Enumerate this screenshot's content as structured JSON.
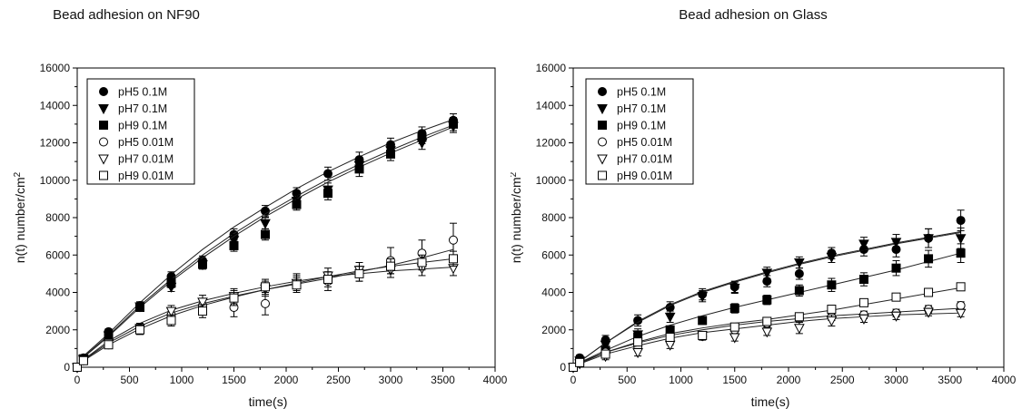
{
  "chart_data": [
    {
      "type": "scatter",
      "title": "Bead adhesion on NF90",
      "xlabel": "time(s)",
      "ylabel": "n(t) number/cm",
      "ylabel_sup": "2",
      "xlim": [
        0,
        4000
      ],
      "ylim": [
        0,
        16000
      ],
      "xticks": [
        0,
        500,
        1000,
        1500,
        2000,
        2500,
        3000,
        3500,
        4000
      ],
      "yticks": [
        0,
        2000,
        4000,
        6000,
        8000,
        10000,
        12000,
        14000,
        16000
      ],
      "legend_position": "top-left",
      "grid": false,
      "x": [
        0,
        60,
        300,
        600,
        900,
        1200,
        1500,
        1800,
        2100,
        2400,
        2700,
        3000,
        3300,
        3600
      ],
      "series": [
        {
          "name": "pH5 0.1M",
          "marker": "circle-filled",
          "values": [
            0,
            500,
            1900,
            3300,
            4850,
            5700,
            7100,
            8350,
            9300,
            10350,
            11100,
            11900,
            12500,
            13200
          ],
          "errors": [
            0,
            100,
            150,
            200,
            250,
            250,
            300,
            300,
            300,
            350,
            400,
            350,
            350,
            350
          ],
          "fit": [
            0,
            600,
            1800,
            3450,
            4950,
            6300,
            7500,
            8550,
            9550,
            10450,
            11250,
            12000,
            12650,
            13250
          ]
        },
        {
          "name": "pH7 0.1M",
          "marker": "triangle-down-filled",
          "values": [
            0,
            450,
            1700,
            3250,
            4300,
            5500,
            6800,
            7700,
            8900,
            9500,
            10800,
            11600,
            12000,
            12900
          ],
          "errors": [
            0,
            100,
            150,
            200,
            250,
            250,
            300,
            300,
            300,
            350,
            400,
            350,
            350,
            350
          ],
          "fit": [
            0,
            550,
            1700,
            3300,
            4700,
            6000,
            7150,
            8200,
            9150,
            10050,
            10850,
            11600,
            12300,
            12950
          ]
        },
        {
          "name": "pH9 0.1M",
          "marker": "square-filled",
          "values": [
            0,
            450,
            1600,
            3200,
            4500,
            5500,
            6500,
            7100,
            8700,
            9300,
            10600,
            11400,
            12300,
            13000
          ],
          "errors": [
            0,
            100,
            150,
            200,
            250,
            250,
            300,
            300,
            300,
            350,
            400,
            350,
            350,
            350
          ],
          "fit": [
            0,
            520,
            1650,
            3200,
            4600,
            5850,
            7000,
            8050,
            9000,
            9900,
            10700,
            11450,
            12150,
            12850
          ]
        },
        {
          "name": "pH5 0.01M",
          "marker": "circle-open",
          "values": [
            0,
            400,
            1200,
            2100,
            2800,
            3300,
            3200,
            3400,
            4500,
            4600,
            5100,
            5700,
            6100,
            6800
          ],
          "errors": [
            0,
            100,
            150,
            250,
            300,
            350,
            500,
            600,
            500,
            500,
            500,
            700,
            700,
            900
          ],
          "fit": [
            0,
            380,
            1300,
            2200,
            2900,
            3400,
            3800,
            4150,
            4450,
            4750,
            5100,
            5450,
            5850,
            6300
          ]
        },
        {
          "name": "pH7 0.01M",
          "marker": "triangle-down-open",
          "values": [
            0,
            400,
            1300,
            2100,
            3000,
            3500,
            3800,
            4200,
            4500,
            4900,
            5200,
            5200,
            5300,
            5300
          ],
          "errors": [
            0,
            100,
            150,
            250,
            300,
            350,
            400,
            400,
            400,
            400,
            400,
            400,
            400,
            400
          ],
          "fit": [
            0,
            400,
            1400,
            2350,
            3050,
            3550,
            3950,
            4300,
            4600,
            4850,
            5000,
            5150,
            5250,
            5350
          ]
        },
        {
          "name": "pH9 0.01M",
          "marker": "square-open",
          "values": [
            0,
            350,
            1200,
            2000,
            2500,
            3000,
            3700,
            4300,
            4400,
            4700,
            5000,
            5400,
            5600,
            5800
          ],
          "errors": [
            0,
            100,
            150,
            250,
            300,
            350,
            400,
            400,
            400,
            400,
            400,
            400,
            400,
            400
          ],
          "fit": [
            0,
            350,
            1200,
            2050,
            2750,
            3300,
            3750,
            4150,
            4500,
            4850,
            5150,
            5400,
            5600,
            5800
          ]
        }
      ]
    },
    {
      "type": "scatter",
      "title": "Bead adhesion on Glass",
      "xlabel": "time(s)",
      "ylabel": "n(t) number/cm",
      "ylabel_sup": "2",
      "xlim": [
        0,
        4000
      ],
      "ylim": [
        0,
        16000
      ],
      "xticks": [
        0,
        500,
        1000,
        1500,
        2000,
        2500,
        3000,
        3500,
        4000
      ],
      "yticks": [
        0,
        2000,
        4000,
        6000,
        8000,
        10000,
        12000,
        14000,
        16000
      ],
      "legend_position": "top-left",
      "grid": false,
      "x": [
        0,
        60,
        300,
        600,
        900,
        1200,
        1500,
        1800,
        2100,
        2400,
        2700,
        3000,
        3300,
        3600
      ],
      "series": [
        {
          "name": "pH5 0.1M",
          "marker": "circle-filled",
          "values": [
            0,
            500,
            1450,
            2500,
            3200,
            3900,
            4300,
            4600,
            5000,
            6100,
            6300,
            6300,
            6900,
            7850
          ],
          "errors": [
            0,
            150,
            250,
            300,
            300,
            300,
            300,
            300,
            300,
            300,
            350,
            400,
            500,
            550
          ],
          "fit": [
            0,
            300,
            1300,
            2450,
            3350,
            4050,
            4600,
            5100,
            5550,
            5950,
            6300,
            6650,
            6950,
            7250
          ]
        },
        {
          "name": "pH7 0.1M",
          "marker": "triangle-down-filled",
          "values": [
            0,
            350,
            1200,
            1750,
            2700,
            3800,
            4250,
            5050,
            5600,
            5900,
            6600,
            6700,
            6900,
            6900
          ],
          "errors": [
            0,
            150,
            250,
            300,
            300,
            300,
            300,
            300,
            300,
            300,
            350,
            400,
            500,
            550
          ],
          "fit": [
            0,
            300,
            1300,
            2400,
            3300,
            4000,
            4550,
            5050,
            5500,
            5900,
            6250,
            6600,
            6900,
            7200
          ]
        },
        {
          "name": "pH9 0.1M",
          "marker": "square-filled",
          "values": [
            0,
            300,
            900,
            1600,
            2000,
            2500,
            3150,
            3600,
            4100,
            4400,
            4700,
            5300,
            5800,
            6100
          ],
          "errors": [
            0,
            100,
            200,
            200,
            200,
            200,
            250,
            250,
            300,
            350,
            350,
            400,
            450,
            500
          ],
          "fit": [
            0,
            250,
            900,
            1650,
            2250,
            2750,
            3200,
            3600,
            4000,
            4400,
            4800,
            5200,
            5650,
            6100
          ]
        },
        {
          "name": "pH5 0.01M",
          "marker": "circle-open",
          "values": [
            0,
            200,
            800,
            1100,
            1400,
            1650,
            2000,
            2350,
            2600,
            2700,
            2800,
            2900,
            3100,
            3300
          ],
          "errors": [
            0,
            100,
            200,
            200,
            200,
            200,
            200,
            200,
            200,
            200,
            200,
            200,
            200,
            200
          ],
          "fit": [
            0,
            200,
            800,
            1300,
            1700,
            2000,
            2250,
            2450,
            2600,
            2750,
            2850,
            2950,
            3050,
            3150
          ]
        },
        {
          "name": "pH7 0.01M",
          "marker": "triangle-down-open",
          "values": [
            0,
            200,
            600,
            800,
            1200,
            1700,
            1600,
            1900,
            2100,
            2500,
            2600,
            2750,
            2950,
            2900
          ],
          "errors": [
            0,
            100,
            200,
            200,
            200,
            200,
            200,
            200,
            300,
            300,
            200,
            200,
            200,
            200
          ],
          "fit": [
            0,
            180,
            700,
            1150,
            1550,
            1850,
            2050,
            2250,
            2450,
            2600,
            2700,
            2800,
            2850,
            2900
          ]
        },
        {
          "name": "pH9 0.01M",
          "marker": "square-open",
          "values": [
            0,
            250,
            700,
            1350,
            1600,
            1700,
            2150,
            2450,
            2700,
            3100,
            3450,
            3750,
            4000,
            4300
          ],
          "errors": [
            0,
            100,
            150,
            200,
            200,
            200,
            200,
            200,
            200,
            200,
            200,
            200,
            200,
            200
          ],
          "fit": [
            0,
            250,
            800,
            1350,
            1800,
            2100,
            2350,
            2550,
            2800,
            3050,
            3350,
            3650,
            3950,
            4250
          ]
        }
      ]
    }
  ]
}
